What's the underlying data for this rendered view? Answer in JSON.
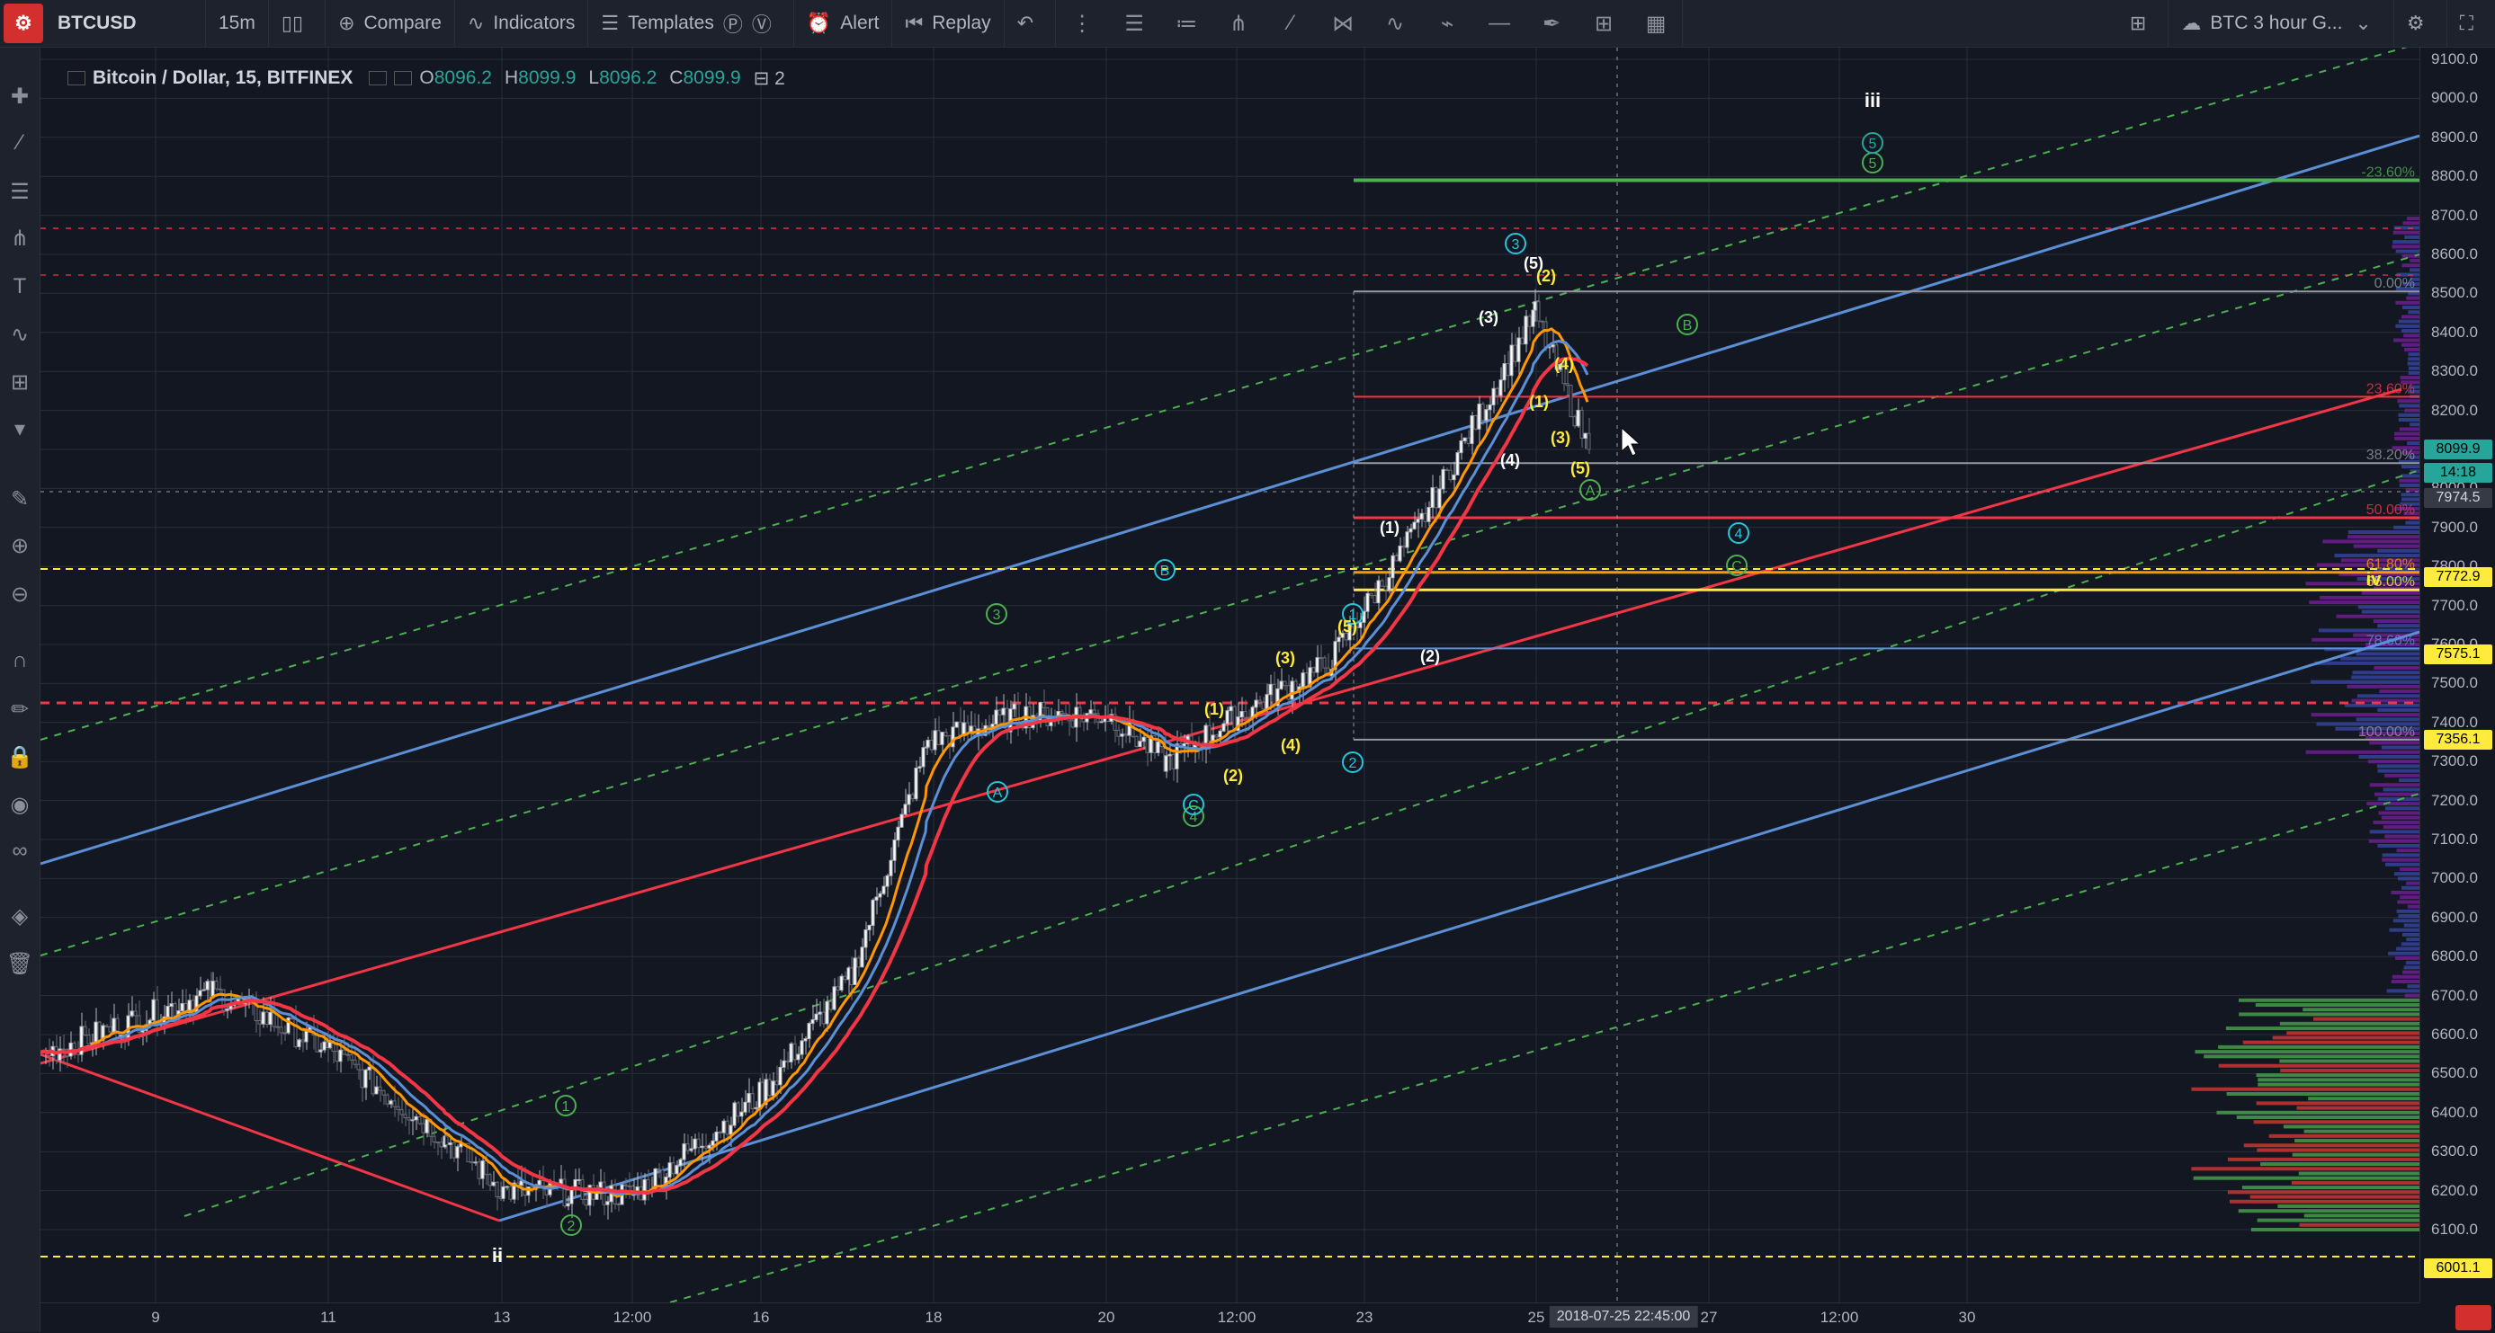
{
  "toolbar": {
    "symbol": "BTCUSD",
    "interval": "15m",
    "compare": "Compare",
    "indicators": "Indicators",
    "templates": "Templates",
    "alert": "Alert",
    "replay": "Replay",
    "layout_name": "BTC 3 hour G..."
  },
  "legend": {
    "title": "Bitcoin / Dollar, 15, BITFINEX",
    "open_label": "O",
    "open": "8096.2",
    "high_label": "H",
    "high": "8099.9",
    "low_label": "L",
    "low": "8096.2",
    "close_label": "C",
    "close": "8099.9",
    "studies_count": "2"
  },
  "price_axis": {
    "ticks": [
      "9100.0",
      "9000.0",
      "8900.0",
      "8800.0",
      "8700.0",
      "8600.0",
      "8500.0",
      "8400.0",
      "8300.0",
      "8200.0",
      "8100.0",
      "8000.0",
      "7900.0",
      "7800.0",
      "7700.0",
      "7600.0",
      "7500.0",
      "7400.0",
      "7300.0",
      "7200.0",
      "7100.0",
      "7000.0",
      "6900.0",
      "6800.0",
      "6700.0",
      "6600.0",
      "6500.0",
      "6400.0",
      "6300.0",
      "6200.0",
      "6100.0"
    ],
    "badges": [
      {
        "label": "8099.9",
        "color": "#26a69a"
      },
      {
        "label": "14:18",
        "color": "#26a69a"
      },
      {
        "label": "7974.5",
        "color": "#363a45"
      },
      {
        "label": "7772.9",
        "color": "#ffeb3b"
      },
      {
        "label": "7575.1",
        "color": "#ffeb3b"
      },
      {
        "label": "7356.1",
        "color": "#ffeb3b"
      },
      {
        "label": "6001.1",
        "color": "#ffeb3b"
      }
    ]
  },
  "time_axis": {
    "labels": [
      "9",
      "11",
      "13",
      "12:00",
      "16",
      "18",
      "20",
      "12:00",
      "23",
      "25",
      "27",
      "12:00",
      "30"
    ],
    "cursor": "2018-07-25 22:45:00"
  },
  "fib": [
    "-23.60%",
    "0.00%",
    "23.60%",
    "38.20%",
    "50.00%",
    "61.80%",
    "65.00%",
    "78.60%",
    "100.00%"
  ],
  "waves": {
    "ii": "ii",
    "iii": "iii",
    "iv": "iv",
    "w1": "1",
    "w2": "2",
    "w3": "3",
    "w4": "4",
    "w5": "5",
    "A": "A",
    "B": "B",
    "C": "C",
    "p1": "(1)",
    "p2": "(2)",
    "p3": "(3)",
    "p4": "(4)",
    "p5": "(5)"
  },
  "colors": {
    "background": "#131722",
    "up": "#26a69a",
    "channel_blue": "#5b8fd6",
    "channel_green": "#4caf50",
    "trend_red": "#f23645",
    "fib_yellow": "#ffeb3b"
  },
  "chart_data": {
    "type": "candlestick",
    "symbol": "Bitcoin / Dollar",
    "exchange": "BITFINEX",
    "interval": "15",
    "price_range": [
      6050,
      9100
    ],
    "close_path": [
      {
        "t": "9",
        "p": 6550
      },
      {
        "t": "10",
        "p": 6710
      },
      {
        "t": "11",
        "p": 6560
      },
      {
        "t": "12",
        "p": 6330
      },
      {
        "t": "13",
        "p": 6200
      },
      {
        "t": "12:00",
        "p": 6190
      },
      {
        "t": "16",
        "p": 6450
      },
      {
        "t": "17",
        "p": 6750
      },
      {
        "t": "18",
        "p": 7350
      },
      {
        "t": "19",
        "p": 7420
      },
      {
        "t": "20",
        "p": 7420
      },
      {
        "t": "21",
        "p": 7300
      },
      {
        "t": "22",
        "p": 7420
      },
      {
        "t": "23",
        "p": 7550
      },
      {
        "t": "24",
        "p": 7900
      },
      {
        "t": "25",
        "p": 8450
      },
      {
        "t": "25 22:45",
        "p": 8099.9
      }
    ]
  }
}
